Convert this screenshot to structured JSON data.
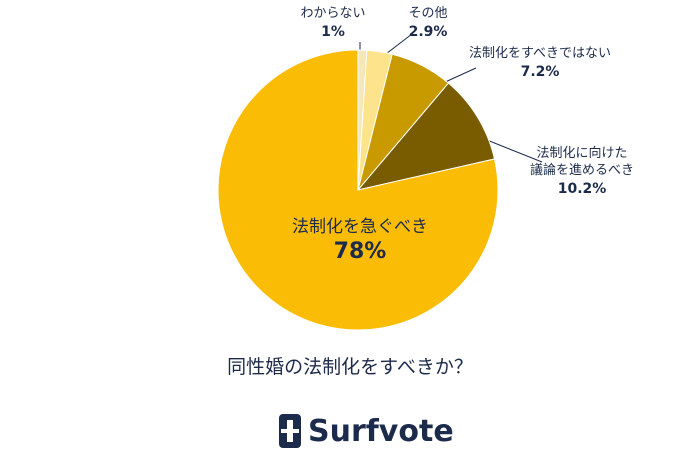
{
  "chart_data": {
    "type": "pie",
    "title": "同性婚の法制化をすべきか？",
    "categories": [
      "わからない",
      "その他",
      "法制化をすべきではない",
      "法制化に向けた\n議論を進めるべき",
      "法制化を急ぐべき"
    ],
    "values": [
      1,
      2.9,
      7.2,
      10.2,
      78
    ],
    "value_labels": [
      "1%",
      "2.9%",
      "7.2%",
      "10.2%",
      "78%"
    ],
    "colors": [
      "#f6e7b9",
      "#fde38c",
      "#c99a00",
      "#7a5c00",
      "#fbbc05"
    ]
  },
  "brand": "Surfvote"
}
